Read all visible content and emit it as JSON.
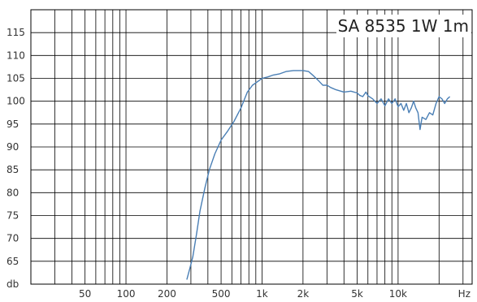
{
  "chart_data": {
    "type": "line",
    "title": "SA 8535 1W 1m",
    "xscale": "log",
    "xlim": [
      20,
      35000
    ],
    "ylim": [
      60,
      120
    ],
    "grid": true,
    "y_ticks": [
      65,
      70,
      75,
      80,
      85,
      90,
      95,
      100,
      105,
      110,
      115
    ],
    "y_unit_label": "db",
    "x_tick_labels": [
      {
        "value": 50,
        "label": "50"
      },
      {
        "value": 100,
        "label": "100"
      },
      {
        "value": 200,
        "label": "200"
      },
      {
        "value": 500,
        "label": "500"
      },
      {
        "value": 1000,
        "label": "1k"
      },
      {
        "value": 2000,
        "label": "2k"
      },
      {
        "value": 5000,
        "label": "5k"
      },
      {
        "value": 10000,
        "label": "10k"
      }
    ],
    "x_unit_label": "Hz",
    "colors": {
      "series": "#4a7fb5",
      "grid": "#000000"
    },
    "series": [
      {
        "x": [
          280,
          295,
          310,
          330,
          350,
          380,
          410,
          450,
          500,
          560,
          620,
          700,
          780,
          850,
          900,
          950,
          1000,
          1100,
          1200,
          1350,
          1500,
          1700,
          1900,
          2000,
          2200,
          2400,
          2600,
          2800,
          3000,
          3200,
          3500,
          4000,
          4500,
          5000,
          5200,
          5500,
          5800,
          6000,
          6500,
          7000,
          7500,
          8000,
          8500,
          9000,
          9500,
          10000,
          10500,
          11000,
          11500,
          12000,
          12500,
          13000,
          13500,
          14000,
          14500,
          15000,
          16000,
          17000,
          18000,
          19000,
          20000,
          21000,
          22000,
          23000,
          24000
        ],
        "y": [
          61,
          63.5,
          66,
          71,
          76,
          81,
          85,
          88.5,
          91.5,
          93.5,
          95.5,
          98.5,
          102,
          103.5,
          104,
          104.5,
          105,
          105.3,
          105.7,
          106,
          106.5,
          106.7,
          106.7,
          106.7,
          106.5,
          105.5,
          104.5,
          103.5,
          103.5,
          103,
          102.5,
          102,
          102.2,
          101.8,
          101.3,
          101,
          102,
          101.2,
          100.5,
          99.5,
          100.5,
          99,
          100.5,
          99.5,
          100.5,
          98.8,
          99.5,
          98,
          99.5,
          97.5,
          98.5,
          100,
          98.5,
          97.5,
          93.8,
          96.5,
          96,
          97.5,
          97,
          99.5,
          101,
          100.5,
          99.5,
          100.5,
          101
        ]
      }
    ]
  }
}
